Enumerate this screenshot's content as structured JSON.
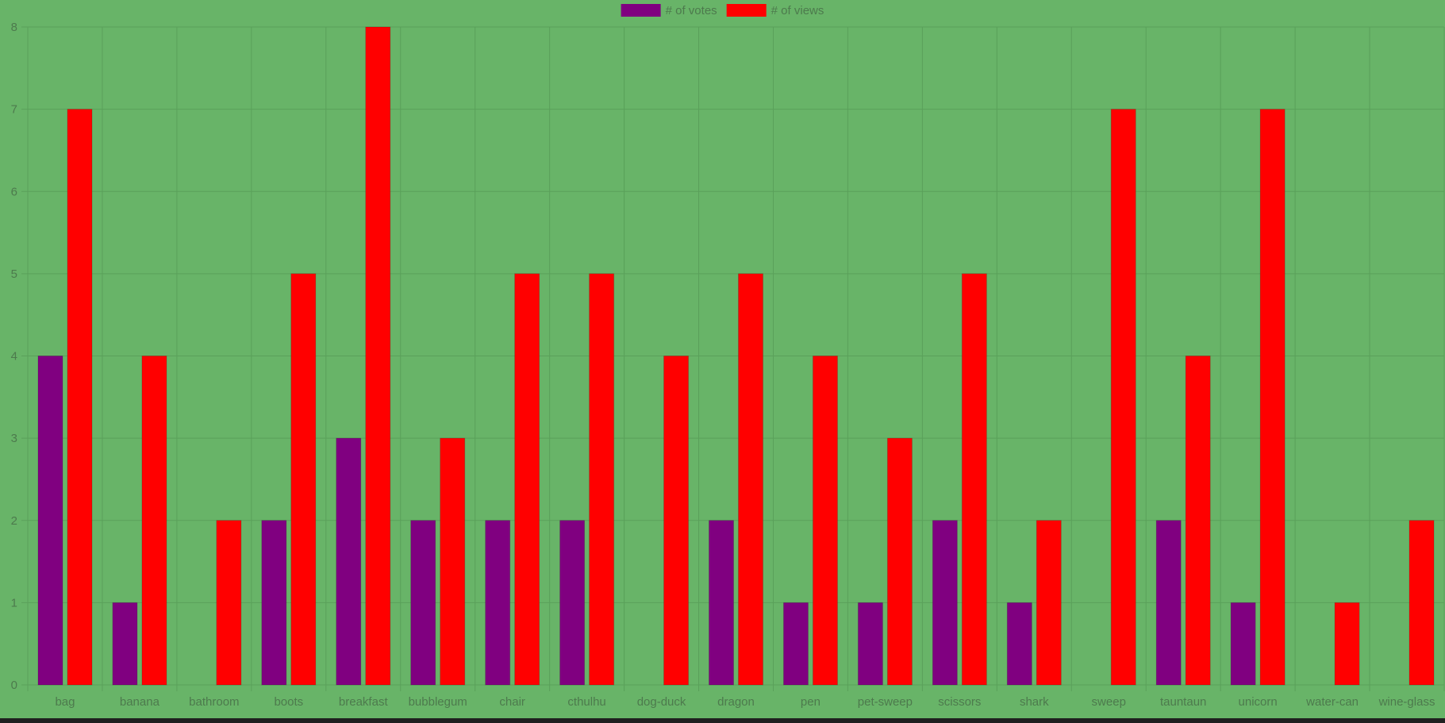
{
  "chart_data": {
    "type": "bar",
    "categories": [
      "bag",
      "banana",
      "bathroom",
      "boots",
      "breakfast",
      "bubblegum",
      "chair",
      "cthulhu",
      "dog-duck",
      "dragon",
      "pen",
      "pet-sweep",
      "scissors",
      "shark",
      "sweep",
      "tauntaun",
      "unicorn",
      "water-can",
      "wine-glass"
    ],
    "series": [
      {
        "name": "# of votes",
        "color": "#800080",
        "values": [
          4,
          1,
          0,
          2,
          3,
          2,
          2,
          2,
          0,
          2,
          1,
          1,
          2,
          1,
          0,
          2,
          1,
          0,
          0
        ]
      },
      {
        "name": "# of views",
        "color": "#ff0000",
        "values": [
          7,
          4,
          2,
          5,
          8,
          3,
          5,
          5,
          4,
          5,
          4,
          3,
          5,
          2,
          7,
          4,
          7,
          1,
          2
        ]
      }
    ],
    "ylim": [
      0,
      8
    ],
    "y_ticks": [
      "0",
      "1",
      "2",
      "3",
      "4",
      "5",
      "6",
      "7",
      "8"
    ],
    "grid": true,
    "legend_position": "top-center",
    "colors": {
      "background": "#68b468",
      "grid": "#5aa05a",
      "axis_text": "#4d7a4d"
    }
  }
}
